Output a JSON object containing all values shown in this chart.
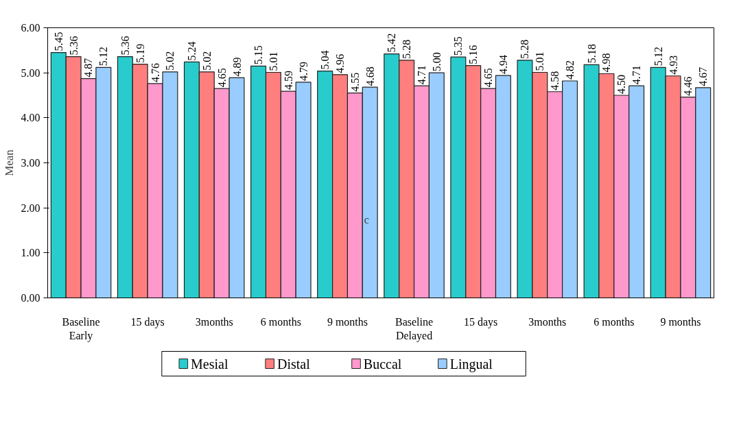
{
  "chart_data": {
    "type": "bar",
    "ylabel": "Mean",
    "categories": [
      "Baseline",
      "15 days",
      "3months",
      "6 months",
      "9 months",
      "Baseline",
      "15 days",
      "3months",
      "6 months",
      "9 months"
    ],
    "series": [
      {
        "name": "Mesial",
        "color": "#29cccc",
        "values": [
          5.45,
          5.36,
          5.24,
          5.15,
          5.04,
          5.42,
          5.35,
          5.28,
          5.18,
          5.12
        ],
        "value_labels": [
          "5.45",
          "5.36",
          "5.24",
          "5.15",
          "5.04",
          "5.42",
          "5.35",
          "5.28",
          "5.18",
          "5.12"
        ]
      },
      {
        "name": "Distal",
        "color": "#ff7f7f",
        "values": [
          5.36,
          5.19,
          5.02,
          5.01,
          4.96,
          5.28,
          5.16,
          5.01,
          4.98,
          4.93
        ],
        "value_labels": [
          "5.36",
          "5.19",
          "5.02",
          "5.01",
          "4.96",
          "5.28",
          "5.16",
          "5.01",
          "4.98",
          "4.93"
        ]
      },
      {
        "name": "Buccal",
        "color": "#ff99cc",
        "values": [
          4.87,
          4.76,
          4.65,
          4.59,
          4.55,
          4.71,
          4.65,
          4.58,
          4.5,
          4.46
        ],
        "value_labels": [
          "4.87",
          "4.76",
          "4.65",
          "4.59",
          "4.55",
          "4.71",
          "4.65",
          "4.58",
          "4.50",
          "4.46"
        ]
      },
      {
        "name": "Lingual",
        "color": "#99ccff",
        "values": [
          5.12,
          5.02,
          4.89,
          4.79,
          4.68,
          5.0,
          4.94,
          4.82,
          4.71,
          4.67
        ],
        "value_labels": [
          "5.12",
          "5.02",
          "4.89",
          "4.79",
          "4.68",
          "5.00",
          "4.94",
          "4.82",
          "4.71",
          "4.67"
        ]
      }
    ],
    "annotations": [
      "Early",
      "Delayed",
      "c"
    ],
    "ylim": [
      0,
      6
    ],
    "yticks": [
      {
        "value": 0,
        "label": "0.00"
      },
      {
        "value": 1,
        "label": "1.00"
      },
      {
        "value": 2,
        "label": "2.00"
      },
      {
        "value": 3,
        "label": "3.00"
      },
      {
        "value": 4,
        "label": "4.00"
      },
      {
        "value": 5,
        "label": "5.00"
      },
      {
        "value": 6,
        "label": "6.00"
      }
    ],
    "legend": "bottom",
    "grid": false
  }
}
